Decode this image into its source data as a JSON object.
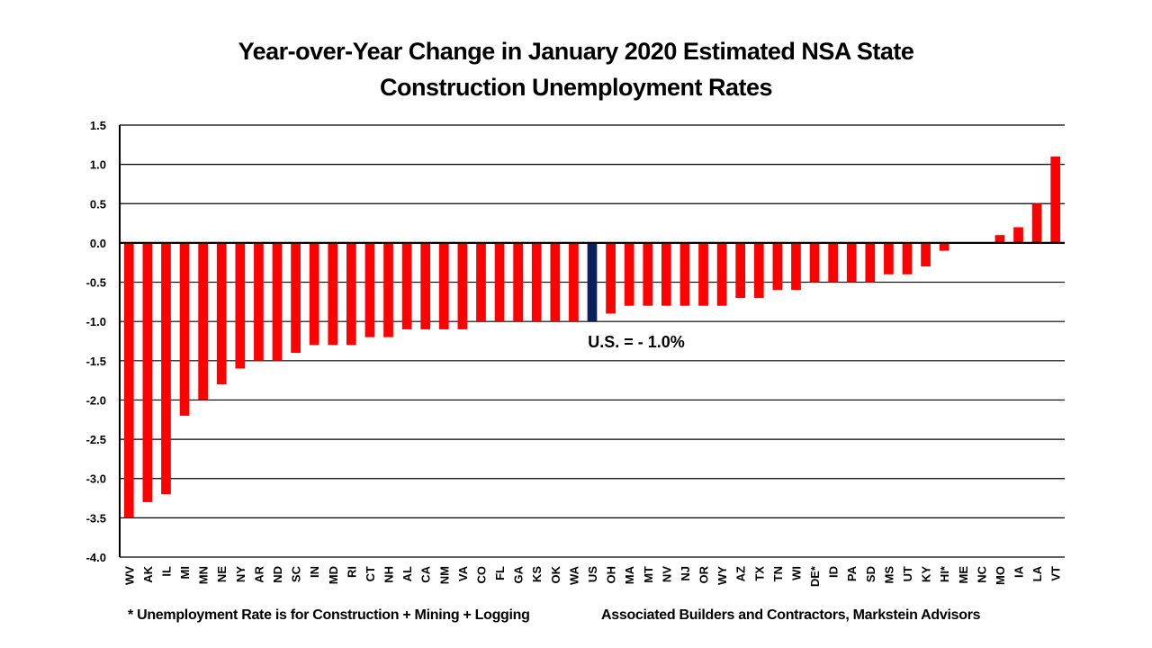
{
  "chart_data": {
    "type": "bar",
    "title": "Year-over-Year Change in January 2020 Estimated NSA State",
    "subtitle": "Construction Unemployment Rates",
    "xlabel": "",
    "ylabel": "",
    "ylim": [
      -4.0,
      1.5
    ],
    "yticks": [
      "1.5",
      "1.0",
      "0.5",
      "0.0",
      "-0.5",
      "-1.0",
      "-1.5",
      "-2.0",
      "-2.5",
      "-3.0",
      "-3.5",
      "-4.0"
    ],
    "ytick_values": [
      1.5,
      1.0,
      0.5,
      0.0,
      -0.5,
      -1.0,
      -1.5,
      -2.0,
      -2.5,
      -3.0,
      -3.5,
      -4.0
    ],
    "grid": true,
    "categories": [
      "WV",
      "AK",
      "IL",
      "MI",
      "MN",
      "NE",
      "NY",
      "AR",
      "ND",
      "SC",
      "IN",
      "MD",
      "RI",
      "CT",
      "NH",
      "AL",
      "CA",
      "NM",
      "VA",
      "CO",
      "FL",
      "GA",
      "KS",
      "OK",
      "WA",
      "US",
      "OH",
      "MA",
      "MT",
      "NV",
      "NJ",
      "OR",
      "WY",
      "AZ",
      "TX",
      "TN",
      "WI",
      "DE*",
      "ID",
      "PA",
      "SD",
      "MS",
      "UT",
      "KY",
      "HI*",
      "ME",
      "NC",
      "MO",
      "IA",
      "LA",
      "VT"
    ],
    "values": [
      -3.5,
      -3.3,
      -3.2,
      -2.2,
      -2.0,
      -1.8,
      -1.6,
      -1.5,
      -1.5,
      -1.4,
      -1.3,
      -1.3,
      -1.3,
      -1.2,
      -1.2,
      -1.1,
      -1.1,
      -1.1,
      -1.1,
      -1.0,
      -1.0,
      -1.0,
      -1.0,
      -1.0,
      -1.0,
      -1.0,
      -0.9,
      -0.8,
      -0.8,
      -0.8,
      -0.8,
      -0.8,
      -0.8,
      -0.7,
      -0.7,
      -0.6,
      -0.6,
      -0.5,
      -0.5,
      -0.5,
      -0.5,
      -0.4,
      -0.4,
      -0.3,
      -0.1,
      0.0,
      0.0,
      0.1,
      0.2,
      0.5,
      1.1
    ],
    "highlight_category": "US",
    "annotation": "U.S. = - 1.0%",
    "colors": {
      "bar": "#ff0000",
      "highlight": "#0a1f5c",
      "grid": "#000000"
    }
  },
  "footnotes": {
    "note": "* Unemployment Rate is for Construction + Mining + Logging",
    "source": "Associated Builders and Contractors, Markstein Advisors"
  }
}
